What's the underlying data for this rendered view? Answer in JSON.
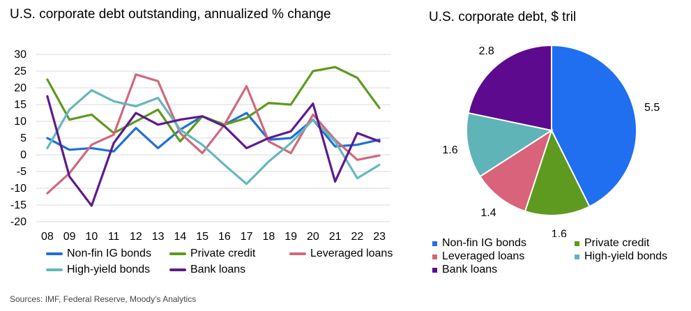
{
  "chart_data": [
    {
      "type": "line",
      "title": "U.S. corporate debt outstanding, annualized % change",
      "categories": [
        "08",
        "09",
        "10",
        "11",
        "12",
        "13",
        "14",
        "15",
        "16",
        "17",
        "18",
        "19",
        "20",
        "21",
        "22",
        "23"
      ],
      "ylim": [
        -20,
        30
      ],
      "yticks": [
        30,
        25,
        20,
        15,
        10,
        5,
        0,
        -5,
        -10,
        -15,
        -20
      ],
      "grid": true,
      "series": [
        {
          "name": "Non-fin IG bonds",
          "color": "#1f6fd8",
          "values": [
            5,
            1.5,
            2,
            1,
            8,
            2,
            7.5,
            11.5,
            9,
            12.5,
            4.5,
            5,
            10.5,
            2.5,
            3,
            4.5
          ]
        },
        {
          "name": "Private credit",
          "color": "#5e9a1f",
          "values": [
            22.5,
            10.5,
            12,
            6.5,
            10,
            13.5,
            4,
            11.5,
            9,
            11,
            15.5,
            15,
            25,
            26.2,
            23,
            14
          ]
        },
        {
          "name": "Leveraged loans",
          "color": "#d1687d",
          "values": [
            -11.5,
            -5.5,
            3,
            6,
            24,
            22,
            6.5,
            0.5,
            9,
            20.5,
            4,
            0.5,
            12,
            4.5,
            -1.5,
            -0.2
          ]
        },
        {
          "name": "High-yield bonds",
          "color": "#66b7bb",
          "values": [
            2,
            13.5,
            19.3,
            16,
            14.5,
            17,
            7.5,
            3,
            -3,
            -8.7,
            -2,
            3.5,
            10.5,
            4,
            -7,
            -3
          ]
        },
        {
          "name": "Bank loans",
          "color": "#5e1a8c",
          "values": [
            17.5,
            -6.5,
            -15.2,
            3.5,
            12.5,
            9,
            10.5,
            11.5,
            8.5,
            2,
            5,
            7,
            15.3,
            -8,
            6.5,
            4
          ]
        }
      ]
    },
    {
      "type": "pie",
      "title": "U.S. corporate debt, $ tril",
      "slices": [
        {
          "name": "Non-fin IG bonds",
          "value": 5.5,
          "label": "5.5",
          "color": "#1f6ff0"
        },
        {
          "name": "Private credit",
          "value": 1.6,
          "label": "1.6",
          "color": "#5e9a1f"
        },
        {
          "name": "Leveraged loans",
          "value": 1.4,
          "label": "1.4",
          "color": "#d9637a"
        },
        {
          "name": "High-yield bonds",
          "value": 1.6,
          "label": "1.6",
          "color": "#5fb4b8"
        },
        {
          "name": "Bank loans",
          "value": 2.8,
          "label": "2.8",
          "color": "#5e0a8f"
        }
      ]
    }
  ],
  "source": "Sources: IMF, Federal Reserve, Moody’s Analytics"
}
